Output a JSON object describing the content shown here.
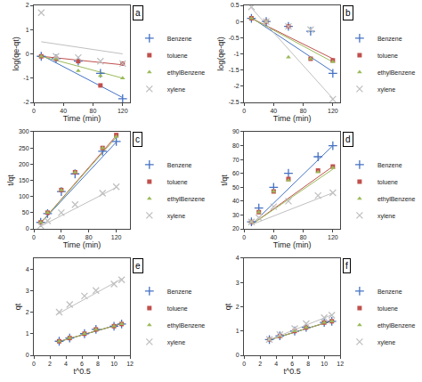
{
  "chart_data": [
    {
      "type": "scatter",
      "annotations": [
        "a"
      ],
      "xlabel": "Time (min)",
      "ylabel": "log(qe-qt)",
      "x": [
        10,
        30,
        60,
        90,
        120
      ],
      "series": [
        {
          "type": "line",
          "color": "#4472c4",
          "x": [
            10,
            120
          ],
          "values": [
            -0.05,
            -1.8
          ]
        },
        {
          "type": "line",
          "color": "#c0504d",
          "x": [
            10,
            120
          ],
          "values": [
            -0.1,
            -0.45
          ]
        },
        {
          "type": "line",
          "color": "#9bbb59",
          "x": [
            10,
            120
          ],
          "values": [
            -0.1,
            -1.0
          ]
        },
        {
          "type": "line",
          "color": "#c0c0c0",
          "x": [
            10,
            120
          ],
          "values": [
            0.5,
            0.0
          ]
        },
        {
          "name": "Benzene",
          "color": "#4472c4",
          "marker": "plus",
          "values": [
            -0.1,
            -0.2,
            -0.3,
            -0.8,
            -1.85
          ]
        },
        {
          "name": "toluene",
          "color": "#c0504d",
          "marker": "square",
          "values": [
            -0.1,
            -0.2,
            -0.3,
            -1.3,
            -0.4
          ]
        },
        {
          "name": "ethylBenzene",
          "color": "#9bbb59",
          "marker": "triangle-up",
          "values": [
            -0.1,
            -0.2,
            -0.7,
            -0.9,
            -1.0
          ]
        },
        {
          "name": "xylene",
          "color": "#c0c0c0",
          "marker": "x",
          "values": [
            1.7,
            -0.1,
            -0.15,
            -0.3,
            -0.4
          ]
        }
      ],
      "xlim": [
        0,
        130
      ],
      "xticks": [
        0,
        40,
        80,
        120
      ],
      "ylim": [
        -2.0,
        2.0
      ],
      "yticks": [
        -2,
        -1,
        0,
        1,
        2
      ],
      "grid": false,
      "legend": "center right"
    },
    {
      "type": "scatter",
      "annotations": [
        "b"
      ],
      "xlabel": "Time (min)",
      "ylabel": "log(qe-qt)",
      "x": [
        10,
        30,
        60,
        90,
        120
      ],
      "series": [
        {
          "type": "line",
          "color": "#4472c4",
          "x": [
            10,
            120
          ],
          "values": [
            0.12,
            -1.55
          ]
        },
        {
          "type": "line",
          "color": "#c0504d",
          "x": [
            10,
            120
          ],
          "values": [
            0.1,
            -1.15
          ]
        },
        {
          "type": "line",
          "color": "#9bbb59",
          "x": [
            10,
            120
          ],
          "values": [
            0.1,
            -1.25
          ]
        },
        {
          "type": "line",
          "color": "#c0c0c0",
          "x": [
            10,
            120
          ],
          "values": [
            0.42,
            -2.38
          ]
        },
        {
          "name": "Benzene",
          "color": "#4472c4",
          "marker": "plus",
          "values": [
            0.1,
            0.0,
            -0.15,
            -0.3,
            -1.6
          ]
        },
        {
          "name": "toluene",
          "color": "#c0504d",
          "marker": "square",
          "values": [
            0.1,
            0.0,
            -0.15,
            -1.15,
            -1.2
          ]
        },
        {
          "name": "ethylBenzene",
          "color": "#9bbb59",
          "marker": "triangle-up",
          "values": [
            0.1,
            0.0,
            -1.1,
            -1.15,
            -1.25
          ]
        },
        {
          "name": "xylene",
          "color": "#c0c0c0",
          "marker": "x",
          "values": [
            0.45,
            0.0,
            -0.15,
            -0.25,
            -2.4
          ]
        }
      ],
      "xlim": [
        0,
        130
      ],
      "xticks": [
        0,
        40,
        80,
        120
      ],
      "ylim": [
        -2.5,
        0.5
      ],
      "yticks": [
        -2.5,
        -2,
        -1.5,
        -1,
        -0.5,
        0,
        0.5
      ],
      "grid": false,
      "legend": "center right"
    },
    {
      "type": "scatter",
      "annotations": [
        "c"
      ],
      "xlabel": "Time (min)",
      "ylabel": "t/qt",
      "x": [
        10,
        20,
        40,
        60,
        100,
        120
      ],
      "series": [
        {
          "type": "line",
          "color": "#4472c4",
          "x": [
            10,
            120
          ],
          "values": [
            18,
            268
          ]
        },
        {
          "type": "line",
          "color": "#c0504d",
          "x": [
            10,
            120
          ],
          "values": [
            18,
            288
          ]
        },
        {
          "type": "line",
          "color": "#9bbb59",
          "x": [
            10,
            120
          ],
          "values": [
            18,
            283
          ]
        },
        {
          "type": "line",
          "color": "#c0c0c0",
          "x": [
            10,
            120
          ],
          "values": [
            8,
            128
          ]
        },
        {
          "name": "Benzene",
          "color": "#4472c4",
          "marker": "plus",
          "values": [
            20,
            47,
            115,
            170,
            240,
            270
          ]
        },
        {
          "name": "toluene",
          "color": "#c0504d",
          "marker": "square",
          "values": [
            20,
            50,
            120,
            175,
            250,
            290
          ]
        },
        {
          "name": "ethylBenzene",
          "color": "#9bbb59",
          "marker": "triangle-up",
          "values": [
            20,
            50,
            120,
            175,
            250,
            285
          ]
        },
        {
          "name": "xylene",
          "color": "#c0c0c0",
          "marker": "x",
          "values": [
            10,
            25,
            50,
            75,
            110,
            130
          ]
        }
      ],
      "xlim": [
        0,
        140
      ],
      "xticks": [
        0,
        40,
        80,
        120
      ],
      "ylim": [
        0,
        300
      ],
      "yticks": [
        0,
        50,
        100,
        150,
        200,
        250,
        300
      ],
      "grid": false,
      "legend": "center right"
    },
    {
      "type": "scatter",
      "annotations": [
        "d"
      ],
      "xlabel": "Time (min)",
      "ylabel": "t/qt",
      "x": [
        10,
        20,
        40,
        60,
        100,
        120
      ],
      "series": [
        {
          "type": "line",
          "color": "#4472c4",
          "x": [
            10,
            120
          ],
          "values": [
            23,
            80
          ]
        },
        {
          "type": "line",
          "color": "#c0504d",
          "x": [
            10,
            120
          ],
          "values": [
            23,
            65
          ]
        },
        {
          "type": "line",
          "color": "#9bbb59",
          "x": [
            10,
            120
          ],
          "values": [
            23,
            63
          ]
        },
        {
          "type": "line",
          "color": "#c0c0c0",
          "x": [
            10,
            120
          ],
          "values": [
            23,
            46
          ]
        },
        {
          "name": "Benzene",
          "color": "#4472c4",
          "marker": "plus",
          "values": [
            25,
            35,
            50,
            60,
            72,
            80
          ]
        },
        {
          "name": "toluene",
          "color": "#c0504d",
          "marker": "square",
          "values": [
            25,
            32,
            47,
            56,
            62,
            65
          ]
        },
        {
          "name": "ethylBenzene",
          "color": "#9bbb59",
          "marker": "triangle-up",
          "values": [
            25,
            32,
            47,
            55,
            61,
            64
          ]
        },
        {
          "name": "xylene",
          "color": "#c0c0c0",
          "marker": "x",
          "values": [
            25,
            28,
            36,
            40,
            44,
            46
          ]
        }
      ],
      "xlim": [
        0,
        130
      ],
      "xticks": [
        0,
        40,
        80,
        120
      ],
      "ylim": [
        20,
        90
      ],
      "yticks": [
        20,
        30,
        40,
        50,
        60,
        70,
        80,
        90
      ],
      "grid": false,
      "legend": "center right"
    },
    {
      "type": "scatter",
      "annotations": [
        "e"
      ],
      "xlabel": "t^0.5",
      "ylabel": "qt",
      "x": [
        3.16,
        4.47,
        6.32,
        7.75,
        10.0,
        10.95
      ],
      "series": [
        {
          "type": "line",
          "color": "#4472c4",
          "x": [
            3.0,
            11.0
          ],
          "values": [
            0.62,
            1.47
          ]
        },
        {
          "type": "line",
          "color": "#c0504d",
          "x": [
            3.0,
            11.0
          ],
          "values": [
            0.62,
            1.47
          ]
        },
        {
          "type": "line",
          "color": "#9bbb59",
          "x": [
            3.0,
            11.0
          ],
          "values": [
            0.62,
            1.47
          ]
        },
        {
          "type": "line",
          "color": "#c0c0c0",
          "x": [
            3.0,
            11.0
          ],
          "values": [
            1.92,
            3.55
          ]
        },
        {
          "name": "Benzene",
          "color": "#4472c4",
          "marker": "plus",
          "values": [
            0.65,
            0.8,
            1.0,
            1.2,
            1.35,
            1.45
          ]
        },
        {
          "name": "toluene",
          "color": "#c0504d",
          "marker": "square",
          "values": [
            0.65,
            0.8,
            1.0,
            1.2,
            1.35,
            1.45
          ]
        },
        {
          "name": "ethylBenzene",
          "color": "#9bbb59",
          "marker": "triangle-up",
          "values": [
            0.65,
            0.8,
            1.0,
            1.2,
            1.35,
            1.45
          ]
        },
        {
          "name": "xylene",
          "color": "#c0c0c0",
          "marker": "x",
          "values": [
            2.0,
            2.35,
            2.75,
            3.0,
            3.3,
            3.5
          ]
        }
      ],
      "xlim": [
        0,
        12
      ],
      "xticks": [
        0,
        2,
        4,
        6,
        8,
        10,
        12
      ],
      "ylim": [
        0,
        4.5
      ],
      "yticks": [
        0,
        1,
        2,
        3,
        4
      ],
      "grid": false,
      "legend": "center right"
    },
    {
      "type": "scatter",
      "annotations": [
        "f"
      ],
      "xlabel": "t^0.5",
      "ylabel": "qt",
      "x": [
        3.16,
        4.47,
        6.32,
        7.75,
        10.0,
        10.95
      ],
      "series": [
        {
          "type": "line",
          "color": "#4472c4",
          "x": [
            3.0,
            11.0
          ],
          "values": [
            0.62,
            1.42
          ]
        },
        {
          "type": "line",
          "color": "#c0504d",
          "x": [
            3.0,
            11.0
          ],
          "values": [
            0.62,
            1.42
          ]
        },
        {
          "type": "line",
          "color": "#9bbb59",
          "x": [
            3.0,
            11.0
          ],
          "values": [
            0.62,
            1.42
          ]
        },
        {
          "type": "line",
          "color": "#c0c0c0",
          "x": [
            3.0,
            11.0
          ],
          "values": [
            0.62,
            1.67
          ]
        },
        {
          "name": "Benzene",
          "color": "#4472c4",
          "marker": "plus",
          "values": [
            0.65,
            0.8,
            1.0,
            1.15,
            1.35,
            1.4
          ]
        },
        {
          "name": "toluene",
          "color": "#c0504d",
          "marker": "square",
          "values": [
            0.65,
            0.8,
            1.0,
            1.15,
            1.35,
            1.4
          ]
        },
        {
          "name": "ethylBenzene",
          "color": "#9bbb59",
          "marker": "triangle-up",
          "values": [
            0.65,
            0.8,
            1.0,
            1.15,
            1.35,
            1.4
          ]
        },
        {
          "name": "xylene",
          "color": "#c0c0c0",
          "marker": "x",
          "values": [
            0.65,
            0.85,
            1.1,
            1.3,
            1.55,
            1.65
          ]
        }
      ],
      "xlim": [
        0,
        12
      ],
      "xticks": [
        0,
        2,
        4,
        6,
        8,
        10,
        12
      ],
      "ylim": [
        0,
        4.0
      ],
      "yticks": [
        0,
        1,
        2,
        3,
        4
      ],
      "grid": false,
      "legend": "center right"
    }
  ]
}
